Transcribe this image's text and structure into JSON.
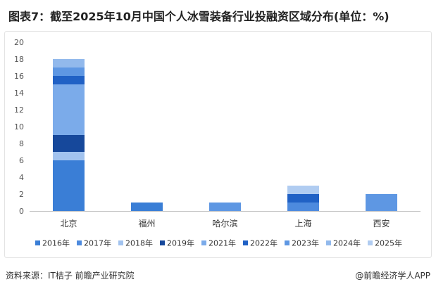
{
  "chart_data": {
    "type": "bar",
    "stacked": true,
    "title": "图表7：截至2025年10月中国个人冰雪装备行业投融资区域分布(单位：%)",
    "categories": [
      "北京",
      "福州",
      "哈尔滨",
      "上海",
      "西安"
    ],
    "ylim": [
      0,
      20
    ],
    "yticks": [
      0,
      2,
      4,
      6,
      8,
      10,
      12,
      14,
      16,
      18,
      20
    ],
    "grid": false,
    "legend_position": "bottom",
    "series": [
      {
        "name": "2016年",
        "color": "#3a7ed6",
        "values": [
          6,
          1,
          0,
          0,
          0
        ]
      },
      {
        "name": "2017年",
        "color": "#4d8ade",
        "values": [
          0,
          0,
          0,
          1,
          0
        ]
      },
      {
        "name": "2018年",
        "color": "#a2c3ef",
        "values": [
          1,
          0,
          0,
          0,
          0
        ]
      },
      {
        "name": "2019年",
        "color": "#16489b",
        "values": [
          2,
          0,
          0,
          0,
          0
        ]
      },
      {
        "name": "2021年",
        "color": "#7babea",
        "values": [
          6,
          0,
          0,
          0,
          0
        ]
      },
      {
        "name": "2022年",
        "color": "#2061c5",
        "values": [
          1,
          0,
          0,
          1,
          0
        ]
      },
      {
        "name": "2023年",
        "color": "#5e97e3",
        "values": [
          1,
          0,
          1,
          0,
          2
        ]
      },
      {
        "name": "2024年",
        "color": "#92b9ec",
        "values": [
          1,
          0,
          0,
          0,
          0
        ]
      },
      {
        "name": "2025年",
        "color": "#b0ccf1",
        "values": [
          0,
          0,
          0,
          1,
          0
        ]
      }
    ]
  },
  "footer": {
    "source": "资料来源：IT桔子 前瞻产业研究院",
    "brand": "@前瞻经济学人APP"
  }
}
